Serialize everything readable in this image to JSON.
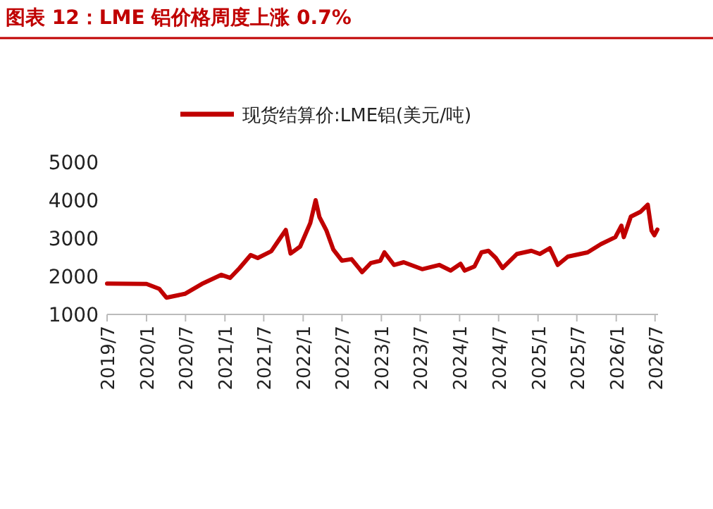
{
  "chart_data": {
    "type": "line",
    "title": "图表 12：LME 铝价格周度上涨 0.7%",
    "legend": "top",
    "xlim": [
      "2019-07-01",
      "2026-07-15"
    ],
    "ylim": [
      1000,
      5000
    ],
    "yticks": [
      1000,
      2000,
      3000,
      4000,
      5000
    ],
    "xticks": [
      {
        "value": "2019-07-01",
        "label": "2019/7"
      },
      {
        "value": "2020-01-01",
        "label": "2020/1"
      },
      {
        "value": "2020-07-01",
        "label": "2020/7"
      },
      {
        "value": "2021-01-01",
        "label": "2021/1"
      },
      {
        "value": "2021-07-01",
        "label": "2021/7"
      },
      {
        "value": "2022-01-01",
        "label": "2022/1"
      },
      {
        "value": "2022-07-01",
        "label": "2022/7"
      },
      {
        "value": "2023-01-01",
        "label": "2023/1"
      },
      {
        "value": "2023-07-01",
        "label": "2023/7"
      },
      {
        "value": "2024-01-01",
        "label": "2024/1"
      },
      {
        "value": "2024-07-01",
        "label": "2024/7"
      },
      {
        "value": "2025-01-01",
        "label": "2025/1"
      },
      {
        "value": "2025-07-01",
        "label": "2025/7"
      },
      {
        "value": "2026-01-01",
        "label": "2026/1"
      },
      {
        "value": "2026-07-01",
        "label": "2026/7"
      }
    ],
    "series": [
      {
        "name": "现货结算价:LME铝(美元/吨)",
        "color": "#c00000",
        "x": [
          "2019-07-01",
          "2020-01-01",
          "2020-03-01",
          "2020-04-03",
          "2020-06-28",
          "2020-09-15",
          "2020-12-15",
          "2021-01-25",
          "2021-03-10",
          "2021-05-01",
          "2021-06-03",
          "2021-08-05",
          "2021-09-10",
          "2021-10-12",
          "2021-11-03",
          "2021-12-18",
          "2022-02-03",
          "2022-02-28",
          "2022-03-18",
          "2022-04-20",
          "2022-05-22",
          "2022-07-01",
          "2022-08-15",
          "2022-10-03",
          "2022-11-12",
          "2022-12-27",
          "2023-01-15",
          "2023-03-01",
          "2023-04-15",
          "2023-07-10",
          "2023-09-28",
          "2023-11-20",
          "2024-01-05",
          "2024-01-25",
          "2024-03-10",
          "2024-04-12",
          "2024-05-15",
          "2024-06-18",
          "2024-07-20",
          "2024-09-25",
          "2024-12-01",
          "2025-01-10",
          "2025-02-25",
          "2025-04-03",
          "2025-05-20",
          "2025-08-20",
          "2025-10-22",
          "2025-12-28",
          "2026-01-25",
          "2026-02-05",
          "2026-03-10",
          "2026-04-25",
          "2026-05-28",
          "2026-06-15",
          "2026-06-28",
          "2026-07-12"
        ],
        "values": [
          1810,
          1800,
          1670,
          1440,
          1540,
          1800,
          2040,
          1960,
          2220,
          2560,
          2480,
          2660,
          2960,
          3220,
          2600,
          2780,
          3400,
          4000,
          3560,
          3200,
          2700,
          2410,
          2450,
          2110,
          2350,
          2410,
          2630,
          2300,
          2370,
          2190,
          2300,
          2150,
          2330,
          2150,
          2260,
          2630,
          2670,
          2480,
          2220,
          2590,
          2670,
          2590,
          2740,
          2300,
          2520,
          2630,
          2850,
          3030,
          3330,
          3030,
          3570,
          3700,
          3880,
          3200,
          3080,
          3230
        ]
      }
    ]
  }
}
